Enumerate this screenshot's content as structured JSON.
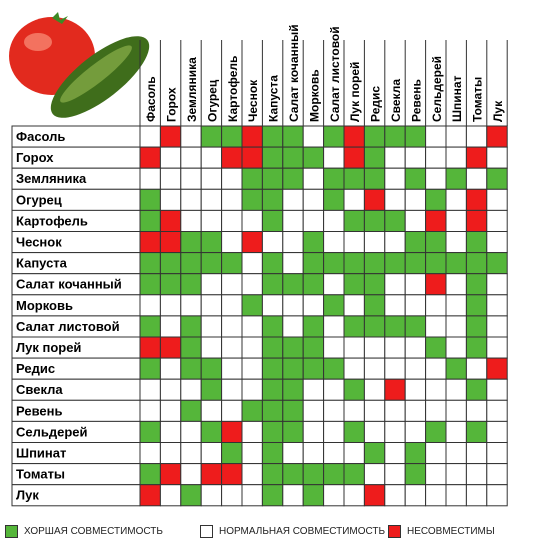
{
  "chart_data": {
    "type": "table",
    "rows": [
      "Фасоль",
      "Горох",
      "Земляника",
      "Огурец",
      "Картофель",
      "Чеснок",
      "Капуста",
      "Салат кочанный",
      "Морковь",
      "Салат листовой",
      "Лук порей",
      "Редис",
      "Свекла",
      "Ревень",
      "Сельдерей",
      "Шпинат",
      "Томаты",
      "Лук"
    ],
    "columns": [
      "Фасоль",
      "Горох",
      "Земляника",
      "Огурец",
      "Картофель",
      "Чеснок",
      "Капуста",
      "Салат кочанный",
      "Морковь",
      "Салат листовой",
      "Лук порей",
      "Редис",
      "Свекла",
      "Ревень",
      "Сельдерей",
      "Шпинат",
      "Томаты",
      "Лук"
    ],
    "legend_codes": {
      "G": "good",
      "W": "normal",
      "R": "incompatible"
    },
    "matrix": [
      "WRWGGRGGWGRGGGWWWR",
      "RWWWRRGGGWRGWWWWRW",
      "WWWWWGGGWGGGWGWGWG",
      "GWWWWGGWWGWRWWGWRW",
      "GRWWWWGWWWGGGWRWRW",
      "RRGGWRWWGWWWWGGWGW",
      "GGGGGWGWGGGGGGGGGG",
      "GGGWWWGGGWGGWWRWGW",
      "WWWWWGWWWGWGWWWWGW",
      "GWGWWWGWGWGGGGWWGW",
      "RRGWWWGGGWWWWWGWGW",
      "GWGGWWGGGGWWWWWGWR",
      "WWWGWWGGWWGWRWWWGW",
      "WWGWWGGGWWWWWWWWWW",
      "GWWGRWGGWWGWWWGWGW",
      "WWWWGWGWWWWGWGWWWW",
      "GRWRRWGGGGGWWGWWWW",
      "RWGWWWGWGWWRWWWWWW"
    ]
  },
  "legend": [
    {
      "label": "ХОРШАЯ СОВМЕСТИМОСТЬ",
      "color": "#55b63a"
    },
    {
      "label": "НОРМАЛЬНАЯ СОВМЕСТИМОСТЬ",
      "color": "#ffffff"
    },
    {
      "label": "НЕСОВМЕСТИМЫ",
      "color": "#ee1c1c"
    }
  ],
  "colors": {
    "good": "#55b63a",
    "normal": "#ffffff",
    "incompatible": "#ee1c1c",
    "grid": "#333333"
  },
  "illustration": {
    "icon": "tomato-cucumber-illustration"
  }
}
